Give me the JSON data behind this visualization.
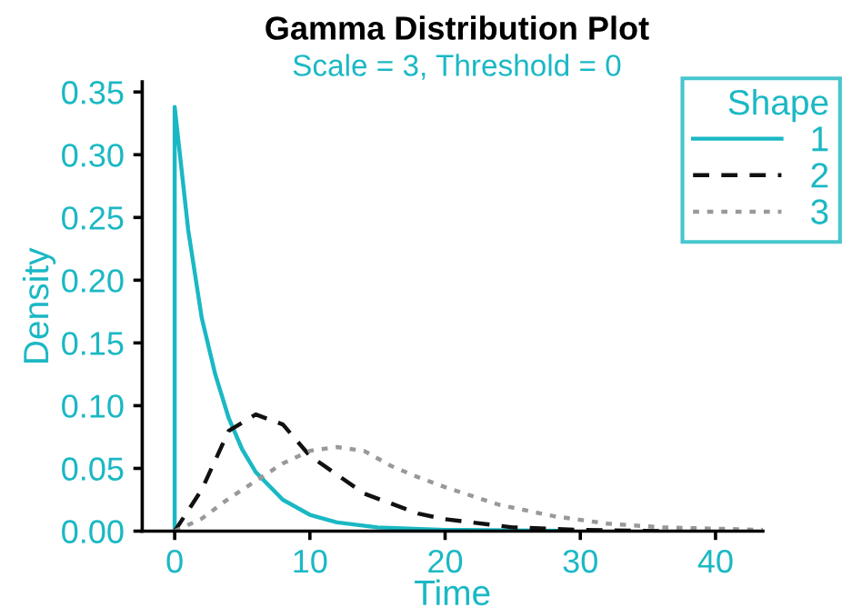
{
  "chart_data": {
    "type": "line",
    "title": "Gamma Distribution Plot",
    "subtitle": "Scale = 3, Threshold = 0",
    "xlabel": "Time",
    "ylabel": "Density",
    "legend_title": "Shape",
    "legend": "top right",
    "grid": false,
    "xlim": [
      -2.4,
      43.5
    ],
    "xticks": [
      0,
      10,
      20,
      30,
      40
    ],
    "ylim": [
      0,
      0.358
    ],
    "yticks": [
      {
        "value": 0,
        "label": "0.00"
      },
      {
        "value": 0.05,
        "label": "0.05"
      },
      {
        "value": 0.1,
        "label": "0.10"
      },
      {
        "value": 0.15,
        "label": "0.15"
      },
      {
        "value": 0.2,
        "label": "0.20"
      },
      {
        "value": 0.25,
        "label": "0.25"
      },
      {
        "value": 0.3,
        "label": "0.30"
      },
      {
        "value": 0.35,
        "label": "0.35"
      }
    ],
    "series": [
      {
        "name": "1",
        "color": "#1ab8c4",
        "line_style": "solid",
        "x": [
          0,
          0,
          1,
          2,
          3,
          4,
          5,
          6,
          8,
          10,
          12,
          15,
          20,
          25,
          28.5
        ],
        "values": [
          0,
          0.338,
          0.24,
          0.17,
          0.125,
          0.09,
          0.065,
          0.047,
          0.025,
          0.013,
          0.007,
          0.003,
          0.001,
          0.0005,
          0.0003
        ]
      },
      {
        "name": "2",
        "color": "#111111",
        "line_style": "dashed",
        "x": [
          0,
          2,
          4,
          6,
          8,
          10,
          12,
          14,
          16,
          18,
          20,
          25,
          30,
          36
        ],
        "values": [
          0,
          0.033,
          0.08,
          0.093,
          0.085,
          0.06,
          0.045,
          0.03,
          0.022,
          0.014,
          0.0095,
          0.003,
          0.001,
          0
        ]
      },
      {
        "name": "3",
        "color": "#999999",
        "line_style": "dotted",
        "x": [
          0,
          2,
          4,
          6,
          8,
          10,
          12,
          14,
          16,
          18,
          20,
          24,
          28,
          32,
          36,
          43.5
        ],
        "values": [
          0,
          0.01,
          0.026,
          0.04,
          0.054,
          0.064,
          0.067,
          0.064,
          0.052,
          0.043,
          0.035,
          0.021,
          0.012,
          0.006,
          0.003,
          0.001
        ]
      }
    ]
  }
}
